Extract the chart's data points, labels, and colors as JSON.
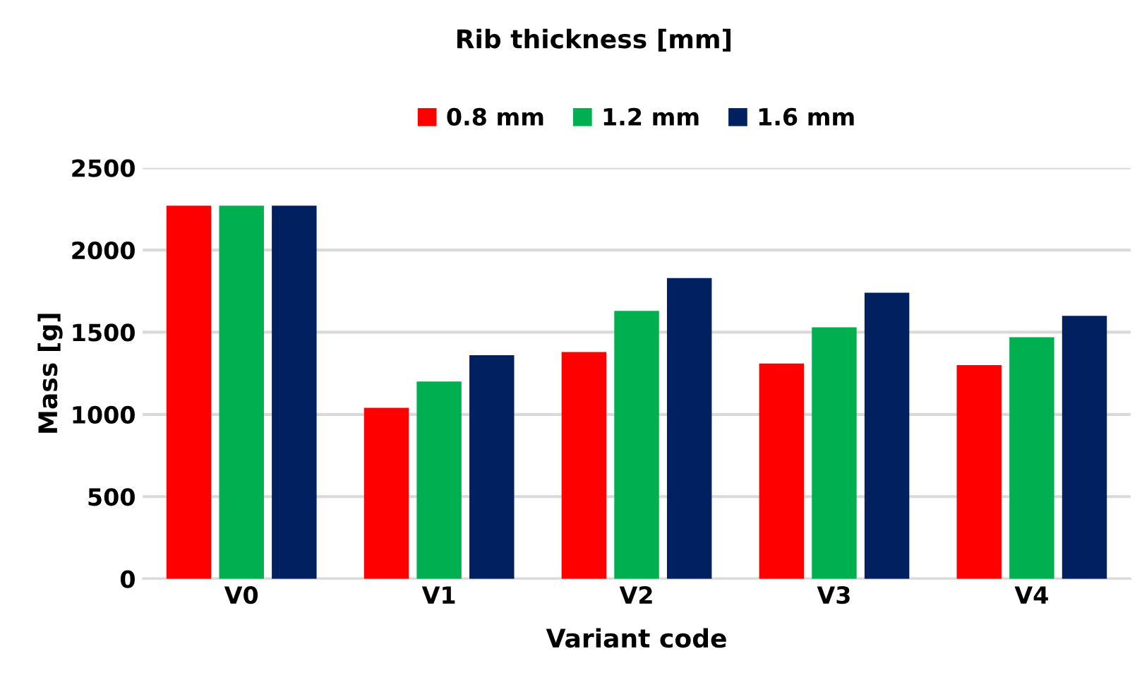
{
  "chart_data": {
    "type": "bar",
    "legend_title": "Rib thickness [mm]",
    "xlabel": "Variant code",
    "ylabel": "Mass [g]",
    "categories": [
      "V0",
      "V1",
      "V2",
      "V3",
      "V4"
    ],
    "series": [
      {
        "name": "0.8 mm",
        "color": "#ff0000",
        "values": [
          2270,
          1040,
          1380,
          1310,
          1300
        ]
      },
      {
        "name": "1.2 mm",
        "color": "#00b050",
        "values": [
          2270,
          1200,
          1630,
          1530,
          1470
        ]
      },
      {
        "name": "1.6 mm",
        "color": "#002060",
        "values": [
          2270,
          1360,
          1830,
          1740,
          1600
        ]
      }
    ],
    "ylim": [
      0,
      2500
    ],
    "yticks": [
      0,
      500,
      1000,
      1500,
      2000,
      2500
    ],
    "grid": "y",
    "legend": "top"
  }
}
